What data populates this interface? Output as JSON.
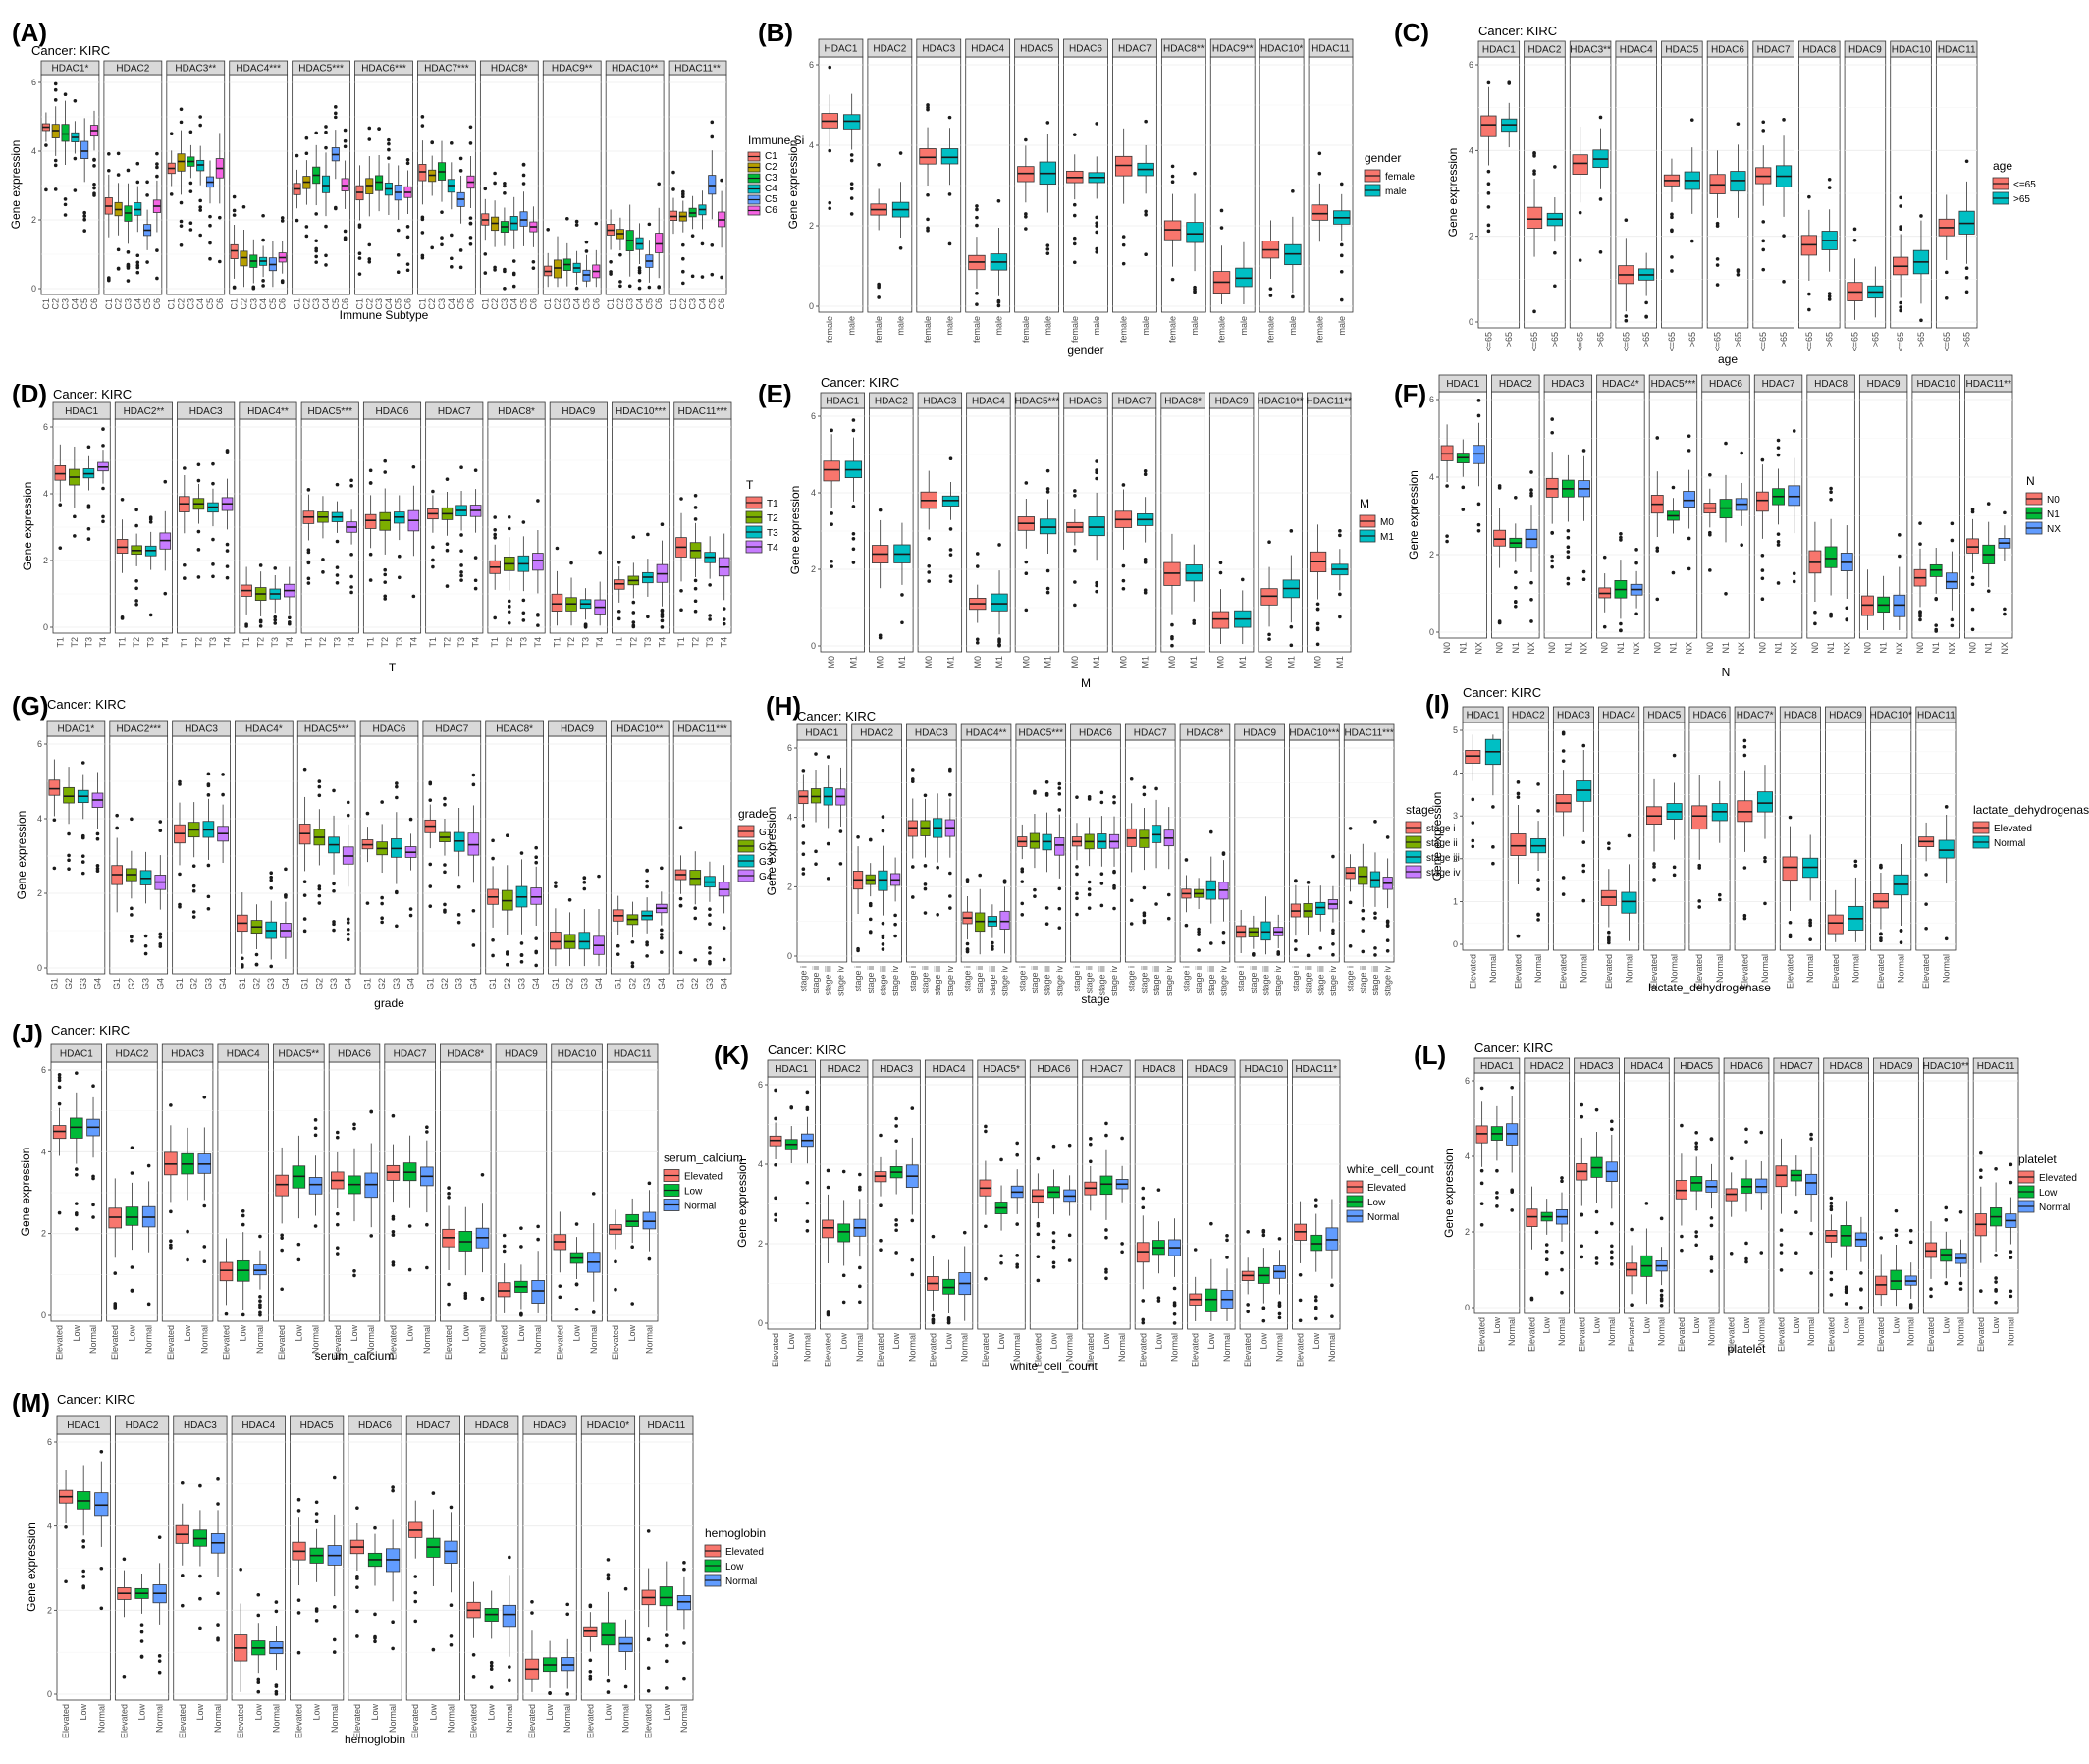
{
  "figure": {
    "colors": {
      "two": [
        "#F8766D",
        "#00BFC4"
      ],
      "three": [
        "#F8766D",
        "#00BA38",
        "#619CFF"
      ],
      "four": [
        "#F8766D",
        "#7CAE00",
        "#00BFC4",
        "#C77CFF"
      ],
      "six": [
        "#F8766D",
        "#B79F00",
        "#00BA38",
        "#00BFC4",
        "#619CFF",
        "#F564E3"
      ]
    }
  },
  "chart_data": [
    {
      "letter": "(A)",
      "cancer": "Cancer: KIRC",
      "type": "boxplot",
      "ylabel": "Gene expression",
      "xlabel": "Immune Subtype",
      "ylim": [
        0,
        6
      ],
      "legend_title": "Immune Si",
      "groups": [
        "C1",
        "C2",
        "C3",
        "C4",
        "C5",
        "C6"
      ],
      "facets": [
        "HDAC1*",
        "HDAC2",
        "HDAC3**",
        "HDAC4***",
        "HDAC5***",
        "HDAC6***",
        "HDAC7***",
        "HDAC8*",
        "HDAC9**",
        "HDAC10**",
        "HDAC11**"
      ],
      "medians": [
        [
          4.7,
          4.6,
          4.5,
          4.4,
          4.0,
          4.6
        ],
        [
          2.4,
          2.3,
          2.2,
          2.3,
          1.7,
          2.4
        ],
        [
          3.5,
          3.7,
          3.7,
          3.6,
          3.1,
          3.5
        ],
        [
          1.1,
          0.9,
          0.8,
          0.8,
          0.7,
          0.9
        ],
        [
          2.9,
          3.1,
          3.3,
          3.0,
          3.9,
          3.0
        ],
        [
          2.8,
          3.0,
          3.1,
          2.9,
          2.8,
          2.8
        ],
        [
          3.4,
          3.3,
          3.4,
          3.0,
          2.6,
          3.1
        ],
        [
          2.0,
          1.9,
          1.8,
          1.9,
          2.0,
          1.8
        ],
        [
          0.5,
          0.6,
          0.7,
          0.6,
          0.4,
          0.5
        ],
        [
          1.7,
          1.6,
          1.4,
          1.3,
          0.8,
          1.3
        ],
        [
          2.1,
          2.1,
          2.2,
          2.3,
          3.0,
          2.0
        ]
      ]
    },
    {
      "letter": "(B)",
      "cancer": "Cancer: KIRC",
      "type": "boxplot",
      "ylabel": "Gene expression",
      "xlabel": "gender",
      "ylim": [
        0,
        6
      ],
      "legend_title": "gender",
      "groups": [
        "female",
        "male"
      ],
      "facets": [
        "HDAC1",
        "HDAC2",
        "HDAC3",
        "HDAC4",
        "HDAC5",
        "HDAC6",
        "HDAC7",
        "HDAC8**",
        "HDAC9**",
        "HDAC10*",
        "HDAC11"
      ],
      "medians": [
        [
          4.6,
          4.6
        ],
        [
          2.4,
          2.4
        ],
        [
          3.7,
          3.7
        ],
        [
          1.1,
          1.1
        ],
        [
          3.3,
          3.3
        ],
        [
          3.2,
          3.2
        ],
        [
          3.5,
          3.4
        ],
        [
          1.9,
          1.8
        ],
        [
          0.6,
          0.7
        ],
        [
          1.4,
          1.3
        ],
        [
          2.3,
          2.2
        ]
      ]
    },
    {
      "letter": "(C)",
      "cancer": "Cancer: KIRC",
      "type": "boxplot",
      "ylabel": "Gene expression",
      "xlabel": "age",
      "ylim": [
        0,
        6
      ],
      "legend_title": "age",
      "groups": [
        "<=65",
        ">65"
      ],
      "facets": [
        "HDAC1",
        "HDAC2",
        "HDAC3**",
        "HDAC4",
        "HDAC5",
        "HDAC6",
        "HDAC7",
        "HDAC8",
        "HDAC9",
        "HDAC10",
        "HDAC11"
      ],
      "medians": [
        [
          4.6,
          4.6
        ],
        [
          2.4,
          2.4
        ],
        [
          3.7,
          3.8
        ],
        [
          1.1,
          1.1
        ],
        [
          3.3,
          3.3
        ],
        [
          3.2,
          3.3
        ],
        [
          3.4,
          3.4
        ],
        [
          1.8,
          1.9
        ],
        [
          0.7,
          0.7
        ],
        [
          1.3,
          1.4
        ],
        [
          2.2,
          2.3
        ]
      ]
    },
    {
      "letter": "(D)",
      "cancer": "Cancer: KIRC",
      "type": "boxplot",
      "ylabel": "Gene expression",
      "xlabel": "T",
      "ylim": [
        0,
        6
      ],
      "legend_title": "T",
      "groups": [
        "T1",
        "T2",
        "T3",
        "T4"
      ],
      "facets": [
        "HDAC1",
        "HDAC2**",
        "HDAC3",
        "HDAC4**",
        "HDAC5***",
        "HDAC6",
        "HDAC7",
        "HDAC8*",
        "HDAC9",
        "HDAC10***",
        "HDAC11***"
      ],
      "medians": [
        [
          4.6,
          4.5,
          4.6,
          4.8
        ],
        [
          2.4,
          2.3,
          2.3,
          2.6
        ],
        [
          3.7,
          3.7,
          3.6,
          3.7
        ],
        [
          1.1,
          1.0,
          1.0,
          1.1
        ],
        [
          3.3,
          3.3,
          3.3,
          3.0
        ],
        [
          3.2,
          3.2,
          3.3,
          3.2
        ],
        [
          3.4,
          3.4,
          3.5,
          3.5
        ],
        [
          1.8,
          1.9,
          1.9,
          2.0
        ],
        [
          0.7,
          0.7,
          0.7,
          0.6
        ],
        [
          1.3,
          1.4,
          1.5,
          1.6
        ],
        [
          2.4,
          2.3,
          2.1,
          1.8
        ]
      ]
    },
    {
      "letter": "(E)",
      "cancer": "Cancer: KIRC",
      "type": "boxplot",
      "ylabel": "Gene expression",
      "xlabel": "M",
      "ylim": [
        0,
        6
      ],
      "legend_title": "M",
      "groups": [
        "M0",
        "M1"
      ],
      "facets": [
        "HDAC1",
        "HDAC2",
        "HDAC3",
        "HDAC4",
        "HDAC5***",
        "HDAC6",
        "HDAC7",
        "HDAC8*",
        "HDAC9",
        "HDAC10**",
        "HDAC11**"
      ],
      "medians": [
        [
          4.6,
          4.6
        ],
        [
          2.4,
          2.4
        ],
        [
          3.8,
          3.8
        ],
        [
          1.1,
          1.1
        ],
        [
          3.2,
          3.1
        ],
        [
          3.1,
          3.1
        ],
        [
          3.3,
          3.3
        ],
        [
          1.9,
          1.9
        ],
        [
          0.7,
          0.7
        ],
        [
          1.3,
          1.5
        ],
        [
          2.2,
          2.0
        ]
      ]
    },
    {
      "letter": "(F)",
      "cancer": "Cancer: KIRC",
      "type": "boxplot",
      "ylabel": "Gene expression",
      "xlabel": "N",
      "ylim": [
        0,
        6
      ],
      "legend_title": "N",
      "groups": [
        "N0",
        "N1",
        "NX"
      ],
      "facets": [
        "HDAC1",
        "HDAC2",
        "HDAC3",
        "HDAC4*",
        "HDAC5***",
        "HDAC6",
        "HDAC7",
        "HDAC8",
        "HDAC9",
        "HDAC10",
        "HDAC11**"
      ],
      "medians": [
        [
          4.6,
          4.5,
          4.6
        ],
        [
          2.4,
          2.3,
          2.4
        ],
        [
          3.7,
          3.7,
          3.7
        ],
        [
          1.0,
          1.1,
          1.1
        ],
        [
          3.3,
          3.0,
          3.4
        ],
        [
          3.2,
          3.2,
          3.3
        ],
        [
          3.4,
          3.5,
          3.5
        ],
        [
          1.8,
          1.9,
          1.8
        ],
        [
          0.7,
          0.7,
          0.7
        ],
        [
          1.4,
          1.6,
          1.3
        ],
        [
          2.2,
          2.0,
          2.3
        ]
      ]
    },
    {
      "letter": "(G)",
      "cancer": "Cancer: KIRC",
      "type": "boxplot",
      "ylabel": "Gene expression",
      "xlabel": "grade",
      "ylim": [
        0,
        6
      ],
      "legend_title": "grade",
      "groups": [
        "G1",
        "G2",
        "G3",
        "G4"
      ],
      "facets": [
        "HDAC1*",
        "HDAC2***",
        "HDAC3",
        "HDAC4*",
        "HDAC5***",
        "HDAC6",
        "HDAC7",
        "HDAC8*",
        "HDAC9",
        "HDAC10**",
        "HDAC11***"
      ],
      "medians": [
        [
          4.8,
          4.6,
          4.6,
          4.5
        ],
        [
          2.5,
          2.5,
          2.4,
          2.3
        ],
        [
          3.6,
          3.7,
          3.7,
          3.6
        ],
        [
          1.2,
          1.1,
          1.0,
          1.0
        ],
        [
          3.6,
          3.5,
          3.3,
          3.0
        ],
        [
          3.3,
          3.2,
          3.2,
          3.1
        ],
        [
          3.8,
          3.5,
          3.4,
          3.3
        ],
        [
          1.9,
          1.8,
          1.9,
          1.9
        ],
        [
          0.7,
          0.7,
          0.7,
          0.6
        ],
        [
          1.4,
          1.3,
          1.4,
          1.6
        ],
        [
          2.5,
          2.4,
          2.3,
          2.1
        ]
      ]
    },
    {
      "letter": "(H)",
      "cancer": "Cancer: KIRC",
      "type": "boxplot",
      "ylabel": "Gene expression",
      "xlabel": "stage",
      "ylim": [
        0,
        6
      ],
      "legend_title": "stage",
      "groups": [
        "stage i",
        "stage ii",
        "stage iii",
        "stage iv"
      ],
      "facets": [
        "HDAC1",
        "HDAC2",
        "HDAC3",
        "HDAC4**",
        "HDAC5***",
        "HDAC6",
        "HDAC7",
        "HDAC8*",
        "HDAC9",
        "HDAC10***",
        "HDAC11***"
      ],
      "medians": [
        [
          4.6,
          4.6,
          4.6,
          4.6
        ],
        [
          2.2,
          2.2,
          2.2,
          2.2
        ],
        [
          3.7,
          3.7,
          3.7,
          3.7
        ],
        [
          1.1,
          1.0,
          1.0,
          1.0
        ],
        [
          3.3,
          3.3,
          3.3,
          3.2
        ],
        [
          3.3,
          3.3,
          3.3,
          3.3
        ],
        [
          3.4,
          3.4,
          3.5,
          3.4
        ],
        [
          1.8,
          1.8,
          1.9,
          1.9
        ],
        [
          0.7,
          0.7,
          0.7,
          0.7
        ],
        [
          1.3,
          1.3,
          1.4,
          1.5
        ],
        [
          2.4,
          2.3,
          2.2,
          2.1
        ]
      ]
    },
    {
      "letter": "(I)",
      "cancer": "Cancer: KIRC",
      "type": "boxplot",
      "ylabel": "Gene expression",
      "xlabel": "lactate_dehydrogenase",
      "ylim": [
        0,
        5
      ],
      "legend_title": "lactate_dehydrogenase",
      "groups": [
        "Elevated",
        "Normal"
      ],
      "facets": [
        "HDAC1",
        "HDAC2",
        "HDAC3",
        "HDAC4",
        "HDAC5",
        "HDAC6",
        "HDAC7*",
        "HDAC8",
        "HDAC9",
        "HDAC10*",
        "HDAC11"
      ],
      "medians": [
        [
          4.4,
          4.5
        ],
        [
          2.3,
          2.3
        ],
        [
          3.3,
          3.6
        ],
        [
          1.1,
          1.0
        ],
        [
          3.0,
          3.1
        ],
        [
          3.0,
          3.1
        ],
        [
          3.1,
          3.3
        ],
        [
          1.8,
          1.8
        ],
        [
          0.5,
          0.6
        ],
        [
          1.0,
          1.4
        ],
        [
          2.4,
          2.2
        ]
      ]
    },
    {
      "letter": "(J)",
      "cancer": "Cancer: KIRC",
      "type": "boxplot",
      "ylabel": "Gene expression",
      "xlabel": "serum_calcium",
      "ylim": [
        0,
        6
      ],
      "legend_title": "serum_calcium",
      "groups": [
        "Elevated",
        "Low",
        "Normal"
      ],
      "facets": [
        "HDAC1",
        "HDAC2",
        "HDAC3",
        "HDAC4",
        "HDAC5**",
        "HDAC6",
        "HDAC7",
        "HDAC8*",
        "HDAC9",
        "HDAC10",
        "HDAC11"
      ],
      "medians": [
        [
          4.5,
          4.6,
          4.6
        ],
        [
          2.4,
          2.4,
          2.4
        ],
        [
          3.7,
          3.7,
          3.7
        ],
        [
          1.1,
          1.1,
          1.1
        ],
        [
          3.2,
          3.4,
          3.2
        ],
        [
          3.3,
          3.2,
          3.2
        ],
        [
          3.5,
          3.5,
          3.4
        ],
        [
          1.9,
          1.8,
          1.9
        ],
        [
          0.6,
          0.7,
          0.6
        ],
        [
          1.8,
          1.4,
          1.3
        ],
        [
          2.1,
          2.3,
          2.3
        ]
      ]
    },
    {
      "letter": "(K)",
      "cancer": "Cancer: KIRC",
      "type": "boxplot",
      "ylabel": "Gene expression",
      "xlabel": "white_cell_count",
      "ylim": [
        0,
        6
      ],
      "legend_title": "white_cell_count",
      "groups": [
        "Elevated",
        "Low",
        "Normal"
      ],
      "facets": [
        "HDAC1",
        "HDAC2",
        "HDAC3",
        "HDAC4",
        "HDAC5*",
        "HDAC6",
        "HDAC7",
        "HDAC8",
        "HDAC9",
        "HDAC10",
        "HDAC11*"
      ],
      "medians": [
        [
          4.6,
          4.5,
          4.6
        ],
        [
          2.4,
          2.3,
          2.4
        ],
        [
          3.7,
          3.8,
          3.7
        ],
        [
          1.0,
          0.9,
          1.0
        ],
        [
          3.4,
          2.9,
          3.3
        ],
        [
          3.2,
          3.3,
          3.2
        ],
        [
          3.4,
          3.5,
          3.5
        ],
        [
          1.8,
          1.9,
          1.9
        ],
        [
          0.6,
          0.6,
          0.6
        ],
        [
          1.2,
          1.2,
          1.3
        ],
        [
          2.3,
          2.0,
          2.1
        ]
      ]
    },
    {
      "letter": "(L)",
      "cancer": "Cancer: KIRC",
      "type": "boxplot",
      "ylabel": "Gene expression",
      "xlabel": "platelet",
      "ylim": [
        0,
        6
      ],
      "legend_title": "platelet",
      "groups": [
        "Elevated",
        "Low",
        "Normal"
      ],
      "facets": [
        "HDAC1",
        "HDAC2",
        "HDAC3",
        "HDAC4",
        "HDAC5",
        "HDAC6",
        "HDAC7",
        "HDAC8",
        "HDAC9",
        "HDAC10**",
        "HDAC11"
      ],
      "medians": [
        [
          4.6,
          4.6,
          4.6
        ],
        [
          2.4,
          2.4,
          2.4
        ],
        [
          3.6,
          3.7,
          3.6
        ],
        [
          1.0,
          1.1,
          1.1
        ],
        [
          3.1,
          3.3,
          3.2
        ],
        [
          3.0,
          3.2,
          3.2
        ],
        [
          3.5,
          3.5,
          3.3
        ],
        [
          1.9,
          1.9,
          1.8
        ],
        [
          0.6,
          0.7,
          0.7
        ],
        [
          1.5,
          1.4,
          1.3
        ],
        [
          2.2,
          2.4,
          2.3
        ]
      ]
    },
    {
      "letter": "(M)",
      "cancer": "Cancer: KIRC",
      "type": "boxplot",
      "ylabel": "Gene expression",
      "xlabel": "hemoglobin",
      "ylim": [
        0,
        6
      ],
      "legend_title": "hemoglobin",
      "groups": [
        "Elevated",
        "Low",
        "Normal"
      ],
      "facets": [
        "HDAC1",
        "HDAC2",
        "HDAC3",
        "HDAC4",
        "HDAC5",
        "HDAC6",
        "HDAC7",
        "HDAC8",
        "HDAC9",
        "HDAC10*",
        "HDAC11"
      ],
      "medians": [
        [
          4.7,
          4.6,
          4.5
        ],
        [
          2.4,
          2.4,
          2.4
        ],
        [
          3.8,
          3.7,
          3.6
        ],
        [
          1.1,
          1.1,
          1.1
        ],
        [
          3.4,
          3.3,
          3.3
        ],
        [
          3.5,
          3.2,
          3.2
        ],
        [
          3.9,
          3.5,
          3.4
        ],
        [
          2.0,
          1.9,
          1.9
        ],
        [
          0.6,
          0.7,
          0.7
        ],
        [
          1.5,
          1.4,
          1.2
        ],
        [
          2.3,
          2.3,
          2.2
        ]
      ]
    }
  ]
}
